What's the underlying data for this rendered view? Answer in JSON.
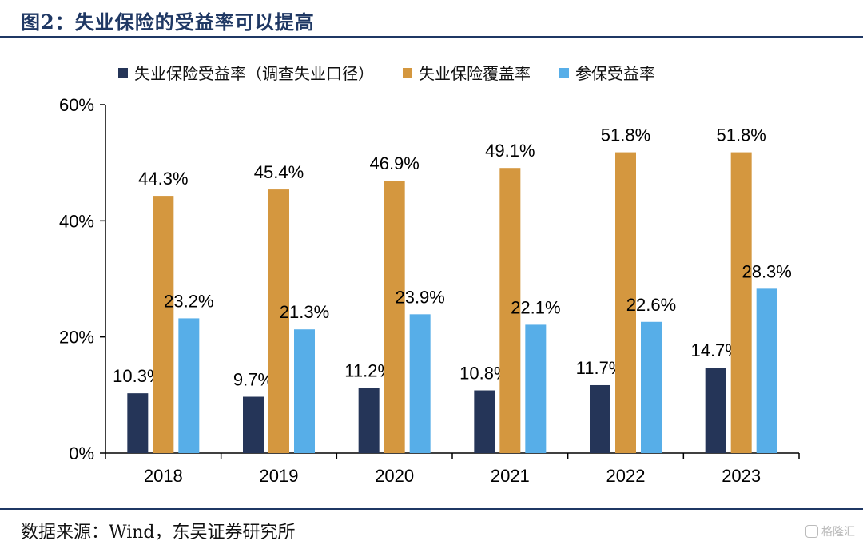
{
  "figure": {
    "title": "图2：失业保险的受益率可以提高",
    "source": "数据来源：Wind，东吴证券研究所",
    "watermark": "格隆汇"
  },
  "chart_data": {
    "type": "bar",
    "title": "",
    "xlabel": "",
    "ylabel": "",
    "categories": [
      "2018",
      "2019",
      "2020",
      "2021",
      "2022",
      "2023"
    ],
    "series": [
      {
        "name": "失业保险受益率（调查失业口径）",
        "color": "#253558",
        "values": [
          10.3,
          9.7,
          11.2,
          10.8,
          11.7,
          14.7
        ],
        "labels": [
          "10.3%",
          "9.7%",
          "11.2%",
          "10.8%",
          "11.7%",
          "14.7%"
        ]
      },
      {
        "name": "失业保险覆盖率",
        "color": "#d4973f",
        "values": [
          44.3,
          45.4,
          46.9,
          49.1,
          51.8,
          51.8
        ],
        "labels": [
          "44.3%",
          "45.4%",
          "46.9%",
          "49.1%",
          "51.8%",
          "51.8%"
        ]
      },
      {
        "name": "参保受益率",
        "color": "#57aee8",
        "values": [
          23.2,
          21.3,
          23.9,
          22.1,
          22.6,
          28.3
        ],
        "labels": [
          "23.2%",
          "21.3%",
          "23.9%",
          "22.1%",
          "22.6%",
          "28.3%"
        ]
      }
    ],
    "ylim": [
      0,
      60
    ],
    "yticks": [
      0,
      20,
      40,
      60
    ],
    "ytick_labels": [
      "0%",
      "20%",
      "40%",
      "60%"
    ],
    "grid": false,
    "legend_position": "top"
  }
}
